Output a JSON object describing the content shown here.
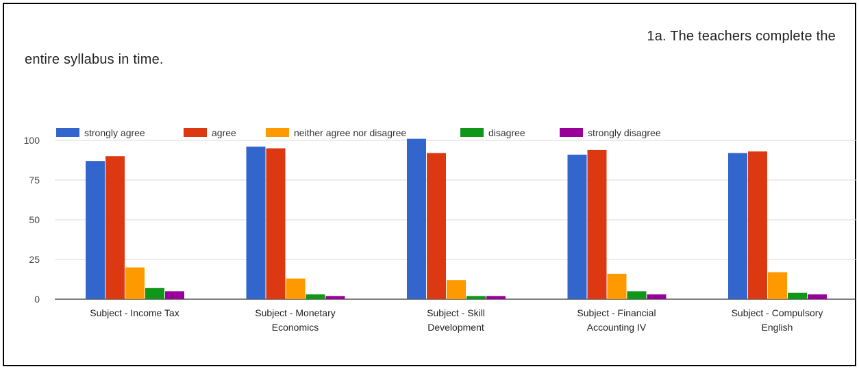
{
  "chart_data": {
    "type": "bar",
    "title_line1": "1a. The teachers complete the",
    "title_line2": "entire syllabus in time.",
    "categories": [
      [
        "Subject - Income Tax"
      ],
      [
        "Subject - Monetary",
        "Economics"
      ],
      [
        "Subject - Skill",
        "Development"
      ],
      [
        "Subject - Financial",
        "Accounting IV"
      ],
      [
        "Subject - Compulsory",
        "English"
      ]
    ],
    "series": [
      {
        "name": "strongly agree",
        "color": "#3366cc",
        "values": [
          87,
          96,
          101,
          91,
          92
        ]
      },
      {
        "name": "agree",
        "color": "#dc3912",
        "values": [
          90,
          95,
          92,
          94,
          93
        ]
      },
      {
        "name": "neither agree nor disagree",
        "color": "#ff9900",
        "values": [
          20,
          13,
          12,
          16,
          17
        ]
      },
      {
        "name": "disagree",
        "color": "#109618",
        "values": [
          7,
          3,
          2,
          5,
          4
        ]
      },
      {
        "name": "strongly disagree",
        "color": "#990099",
        "values": [
          5,
          2,
          2,
          3,
          3
        ]
      }
    ],
    "yticks": [
      "0",
      "25",
      "50",
      "75",
      "100"
    ],
    "ylim": [
      0,
      100
    ],
    "grid": true,
    "legend": "top"
  }
}
